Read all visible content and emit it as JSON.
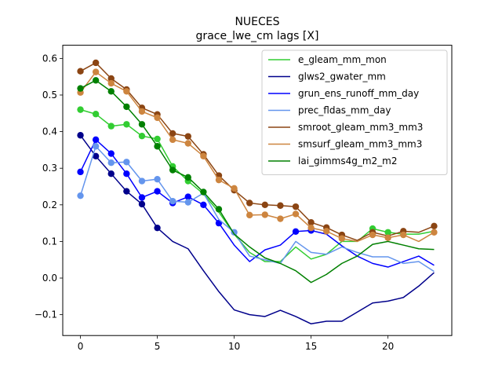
{
  "chart_data": {
    "type": "line",
    "title": "NUECES",
    "subtitle": "grace_lwe_cm lags [X]",
    "xlim": [
      -1.15,
      24.15
    ],
    "ylim": [
      -0.157,
      0.636
    ],
    "x_ticks": [
      0,
      5,
      10,
      15,
      20
    ],
    "y_ticks": [
      -0.1,
      0.0,
      0.1,
      0.2,
      0.3,
      0.4,
      0.5,
      0.6
    ],
    "y_tick_labels": [
      "−0.1",
      "0.0",
      "0.1",
      "0.2",
      "0.3",
      "0.4",
      "0.5",
      "0.6"
    ],
    "legend_position": "top-right",
    "grid": false,
    "series": [
      {
        "name": "e_gleam_mm_mon",
        "color": "#32cd32",
        "x": [
          0,
          1,
          2,
          3,
          4,
          5,
          6,
          7,
          8,
          9,
          10,
          11,
          12,
          13,
          14,
          15,
          16,
          17,
          18,
          19,
          20,
          21,
          22,
          23
        ],
        "values": [
          0.46,
          0.448,
          0.415,
          0.42,
          0.388,
          0.38,
          0.305,
          0.265,
          0.23,
          0.18,
          0.12,
          0.07,
          0.045,
          0.045,
          0.085,
          0.052,
          0.065,
          0.1,
          0.1,
          0.135,
          0.125,
          0.12,
          0.12,
          0.128
        ],
        "markers": [
          0,
          1,
          2,
          3,
          4,
          5,
          6,
          7,
          19,
          20
        ]
      },
      {
        "name": "glws2_gwater_mm",
        "color": "#00008b",
        "x": [
          0,
          1,
          2,
          3,
          4,
          5,
          6,
          7,
          8,
          9,
          10,
          11,
          12,
          13,
          14,
          15,
          16,
          17,
          18,
          19,
          20,
          21,
          22,
          23
        ],
        "values": [
          0.39,
          0.333,
          0.285,
          0.237,
          0.202,
          0.137,
          0.1,
          0.08,
          0.02,
          -0.037,
          -0.087,
          -0.1,
          -0.105,
          -0.088,
          -0.105,
          -0.125,
          -0.118,
          -0.118,
          -0.093,
          -0.068,
          -0.063,
          -0.053,
          -0.022,
          0.015
        ],
        "markers": [
          0,
          1,
          2,
          3,
          4,
          5
        ]
      },
      {
        "name": "grun_ens_runoff_mm_day",
        "color": "#0000ff",
        "x": [
          0,
          1,
          2,
          3,
          4,
          5,
          6,
          7,
          8,
          9,
          10,
          11,
          12,
          13,
          14,
          15,
          16,
          17,
          18,
          19,
          20,
          21,
          22,
          23
        ],
        "values": [
          0.29,
          0.378,
          0.34,
          0.285,
          0.22,
          0.237,
          0.205,
          0.222,
          0.2,
          0.15,
          0.09,
          0.045,
          0.077,
          0.09,
          0.127,
          0.13,
          0.12,
          0.088,
          0.06,
          0.04,
          0.03,
          0.045,
          0.06,
          0.035
        ],
        "markers": [
          0,
          1,
          2,
          3,
          4,
          5,
          6,
          7,
          8,
          9,
          14,
          15
        ]
      },
      {
        "name": "prec_fldas_mm_day",
        "color": "#6495ed",
        "x": [
          0,
          1,
          2,
          3,
          4,
          5,
          6,
          7,
          8,
          9,
          10,
          11,
          12,
          13,
          14,
          15,
          16,
          17,
          18,
          19,
          20,
          21,
          22,
          23
        ],
        "values": [
          0.225,
          0.36,
          0.315,
          0.317,
          0.265,
          0.27,
          0.21,
          0.207,
          0.232,
          0.16,
          0.125,
          0.06,
          0.05,
          0.04,
          0.1,
          0.07,
          0.065,
          0.085,
          0.07,
          0.058,
          0.058,
          0.04,
          0.045,
          0.018
        ],
        "markers": [
          0,
          1,
          2,
          3,
          4,
          5,
          6,
          7,
          10
        ]
      },
      {
        "name": "smroot_gleam_mm3_mm3",
        "color": "#8b4513",
        "x": [
          0,
          1,
          2,
          3,
          4,
          5,
          6,
          7,
          8,
          9,
          10,
          11,
          12,
          13,
          14,
          15,
          16,
          17,
          18,
          19,
          20,
          21,
          22,
          23
        ],
        "values": [
          0.565,
          0.588,
          0.545,
          0.515,
          0.465,
          0.447,
          0.395,
          0.387,
          0.338,
          0.28,
          0.24,
          0.205,
          0.2,
          0.198,
          0.195,
          0.152,
          0.138,
          0.118,
          0.103,
          0.125,
          0.115,
          0.128,
          0.125,
          0.142
        ],
        "markers": [
          0,
          1,
          2,
          3,
          4,
          5,
          6,
          7,
          8,
          9,
          10,
          11,
          12,
          13,
          14,
          15,
          16,
          17,
          19,
          21,
          23
        ]
      },
      {
        "name": "smsurf_gleam_mm3_mm3",
        "color": "#cd853f",
        "x": [
          0,
          1,
          2,
          3,
          4,
          5,
          6,
          7,
          8,
          9,
          10,
          11,
          12,
          13,
          14,
          15,
          16,
          17,
          18,
          19,
          20,
          21,
          22,
          23
        ],
        "values": [
          0.507,
          0.563,
          0.532,
          0.51,
          0.455,
          0.438,
          0.378,
          0.368,
          0.333,
          0.268,
          0.245,
          0.172,
          0.173,
          0.162,
          0.175,
          0.137,
          0.128,
          0.108,
          0.1,
          0.118,
          0.11,
          0.118,
          0.1,
          0.125
        ],
        "markers": [
          0,
          1,
          2,
          3,
          4,
          5,
          6,
          7,
          8,
          9,
          10,
          11,
          12,
          13,
          14,
          15,
          16,
          17,
          19,
          20,
          21,
          23
        ]
      },
      {
        "name": "lai_gimms4g_m2_m2",
        "color": "#008000",
        "x": [
          0,
          1,
          2,
          3,
          4,
          5,
          6,
          7,
          8,
          9,
          10,
          11,
          12,
          13,
          14,
          15,
          16,
          17,
          18,
          19,
          20,
          21,
          22,
          23
        ],
        "values": [
          0.518,
          0.54,
          0.51,
          0.468,
          0.42,
          0.36,
          0.295,
          0.275,
          0.235,
          0.188,
          0.12,
          0.085,
          0.055,
          0.04,
          0.02,
          -0.012,
          0.01,
          0.04,
          0.06,
          0.092,
          0.1,
          0.09,
          0.08,
          0.078
        ],
        "markers": [
          0,
          1,
          2,
          3,
          4,
          5,
          6,
          7,
          8,
          9
        ]
      }
    ]
  }
}
